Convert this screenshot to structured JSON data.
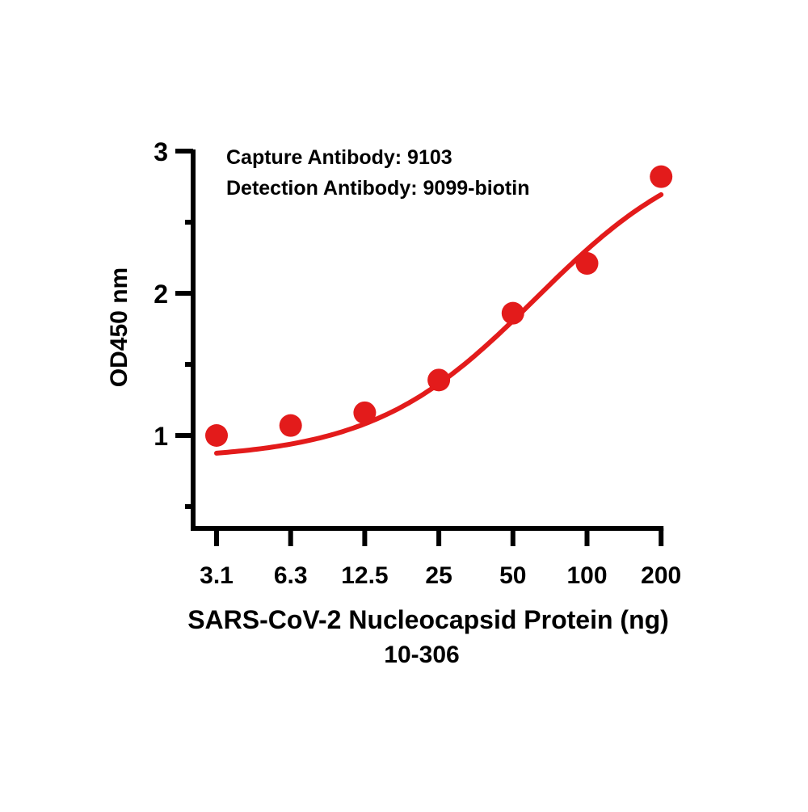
{
  "chart_data": {
    "type": "scatter",
    "x_scale": "log2",
    "categories": [
      "3.1",
      "6.3",
      "12.5",
      "25",
      "50",
      "100",
      "200"
    ],
    "x": [
      3.125,
      6.25,
      12.5,
      25,
      50,
      100,
      200
    ],
    "series": [
      {
        "values": [
          1.0,
          1.07,
          1.16,
          1.39,
          1.86,
          2.21,
          2.82
        ],
        "color": "#e31b1b",
        "marker": "circle",
        "fit_line": {
          "type": "4PL",
          "bottom": 0.83,
          "top": 3.1,
          "ec50": 62,
          "hill": 1.3
        }
      }
    ],
    "annotations": [
      "Capture Antibody: 9103",
      "Detection Antibody: 9099-biotin"
    ],
    "ylabel": "OD450 nm",
    "xlabel": "SARS-CoV-2 Nucleocapsid Protein (ng)",
    "subtitle": "10-306",
    "yticks": [
      "1",
      "2",
      "3"
    ],
    "ylim": [
      0.5,
      3.0
    ],
    "grid": false
  }
}
